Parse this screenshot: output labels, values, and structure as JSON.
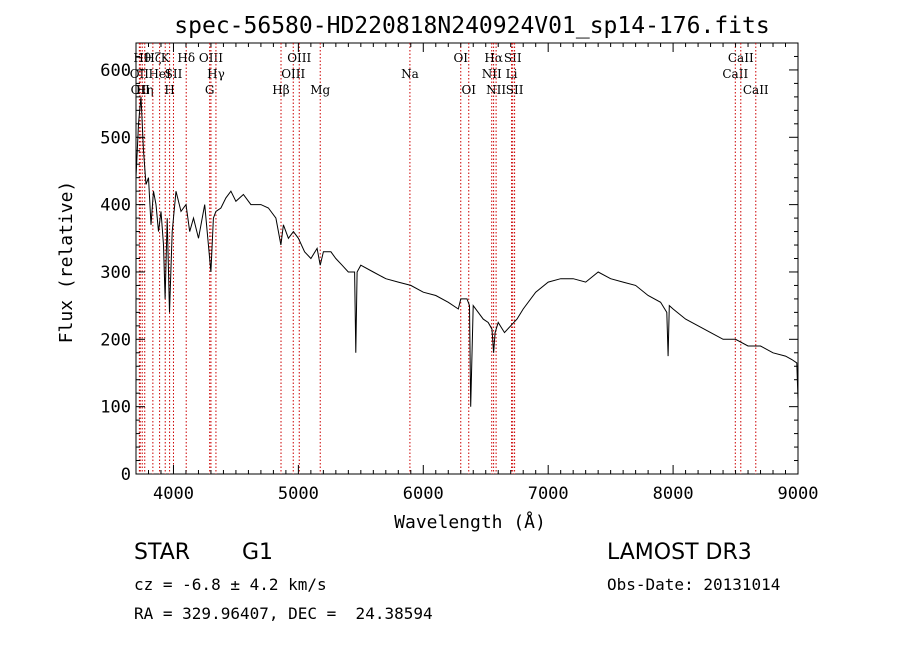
{
  "chart_data": {
    "type": "line",
    "title": "spec-56580-HD220818N240924V01_sp14-176.fits",
    "xlabel": "Wavelength (Å)",
    "ylabel": "Flux (relative)",
    "xlim": [
      3700,
      9000
    ],
    "ylim": [
      0,
      640
    ],
    "grid": false,
    "x_ticks": [
      4000,
      5000,
      6000,
      7000,
      8000,
      9000
    ],
    "y_ticks": [
      0,
      100,
      200,
      300,
      400,
      500,
      600
    ],
    "line_color": "#000000",
    "marker_color": "#cc0000",
    "series": [
      {
        "x": [
          3700,
          3720,
          3740,
          3760,
          3780,
          3800,
          3820,
          3840,
          3860,
          3880,
          3900,
          3920,
          3933,
          3950,
          3968,
          3990,
          4020,
          4060,
          4100,
          4130,
          4160,
          4200,
          4250,
          4300,
          4320,
          4340,
          4380,
          4420,
          4460,
          4500,
          4560,
          4620,
          4700,
          4760,
          4820,
          4860,
          4880,
          4920,
          4960,
          5000,
          5050,
          5100,
          5150,
          5175,
          5200,
          5260,
          5300,
          5350,
          5400,
          5450,
          5460,
          5470,
          5500,
          5600,
          5700,
          5800,
          5900,
          6000,
          6100,
          6200,
          6280,
          6300,
          6350,
          6370,
          6380,
          6400,
          6480,
          6520,
          6550,
          6563,
          6575,
          6600,
          6650,
          6700,
          6750,
          6800,
          6900,
          7000,
          7100,
          7200,
          7300,
          7400,
          7500,
          7600,
          7700,
          7800,
          7900,
          7950,
          7960,
          7970,
          8000,
          8100,
          8200,
          8300,
          8400,
          8500,
          8600,
          8700,
          8800,
          8900,
          8950,
          8990,
          9000
        ],
        "y": [
          440,
          520,
          560,
          480,
          430,
          440,
          370,
          420,
          400,
          360,
          390,
          340,
          260,
          380,
          240,
          360,
          420,
          390,
          400,
          360,
          380,
          350,
          400,
          300,
          380,
          390,
          395,
          410,
          420,
          405,
          415,
          400,
          400,
          395,
          380,
          340,
          370,
          350,
          360,
          350,
          330,
          320,
          335,
          310,
          330,
          330,
          320,
          310,
          300,
          300,
          180,
          300,
          310,
          300,
          290,
          285,
          280,
          270,
          265,
          255,
          245,
          260,
          260,
          250,
          100,
          250,
          230,
          225,
          215,
          180,
          210,
          225,
          210,
          220,
          230,
          245,
          270,
          285,
          290,
          290,
          285,
          300,
          290,
          285,
          280,
          265,
          255,
          240,
          175,
          250,
          245,
          230,
          220,
          210,
          200,
          200,
          190,
          190,
          180,
          175,
          170,
          165,
          110
        ]
      }
    ],
    "line_markers": [
      {
        "wavelength": 3727,
        "label": "OII",
        "row": 2
      },
      {
        "wavelength": 3734,
        "label": "OII",
        "row": 3
      },
      {
        "wavelength": 3750,
        "label": "Hθ",
        "row": 1
      },
      {
        "wavelength": 3770,
        "label": "Hη",
        "row": 3
      },
      {
        "wavelength": 3835,
        "label": "Hζ",
        "row": 1
      },
      {
        "wavelength": 3889,
        "label": "HeI",
        "row": 2
      },
      {
        "wavelength": 3934,
        "label": "K",
        "row": 1
      },
      {
        "wavelength": 3969,
        "label": "H",
        "row": 3
      },
      {
        "wavelength": 4000,
        "label": "SII",
        "row": 2
      },
      {
        "wavelength": 4102,
        "label": "Hδ",
        "row": 1
      },
      {
        "wavelength": 4290,
        "label": "G",
        "row": 3
      },
      {
        "wavelength": 4300,
        "label": "OIII",
        "row": 1
      },
      {
        "wavelength": 4340,
        "label": "Hγ",
        "row": 2
      },
      {
        "wavelength": 4861,
        "label": "Hβ",
        "row": 3
      },
      {
        "wavelength": 4959,
        "label": "OIII",
        "row": 2
      },
      {
        "wavelength": 5007,
        "label": "OIII",
        "row": 1
      },
      {
        "wavelength": 5175,
        "label": "Mg",
        "row": 3
      },
      {
        "wavelength": 5893,
        "label": "Na",
        "row": 2
      },
      {
        "wavelength": 6300,
        "label": "OI",
        "row": 1
      },
      {
        "wavelength": 6364,
        "label": "OI",
        "row": 3
      },
      {
        "wavelength": 6548,
        "label": "NII",
        "row": 2
      },
      {
        "wavelength": 6563,
        "label": "Hα",
        "row": 1
      },
      {
        "wavelength": 6583,
        "label": "NII",
        "row": 3
      },
      {
        "wavelength": 6707,
        "label": "Li",
        "row": 2
      },
      {
        "wavelength": 6716,
        "label": "SII",
        "row": 1
      },
      {
        "wavelength": 6731,
        "label": "SII",
        "row": 3
      },
      {
        "wavelength": 8498,
        "label": "CaII",
        "row": 2
      },
      {
        "wavelength": 8542,
        "label": "CaII",
        "row": 1
      },
      {
        "wavelength": 8662,
        "label": "CaII",
        "row": 3
      }
    ]
  },
  "info": {
    "object_type": "STAR",
    "subclass": "G1",
    "survey": "LAMOST DR3",
    "redshift_line": "cz = -6.8 ± 4.2 km/s",
    "obs_date_line": "Obs-Date: 20131014",
    "coords_line": "RA = 329.96407, DEC =  24.38594"
  }
}
